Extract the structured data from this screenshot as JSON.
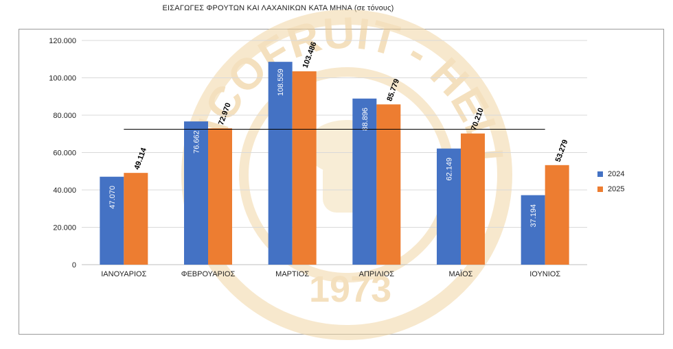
{
  "chart_data": {
    "type": "bar",
    "title": "ΕΙΣΑΓΩΓΕΣ ΦΡΟΥΤΩΝ ΚΑΙ ΛΑΧΑΝΙΚΩΝ ΚΑΤΑ ΜΗΝΑ (σε τόνους)",
    "categories": [
      "ΙΑΝΟΥΑΡΙΟΣ",
      "ΦΕΒΡΟΥΑΡΙΟΣ",
      "ΜΑΡΤΙΟΣ",
      "ΑΠΡΙΛΙΟΣ",
      "ΜΑΪΟΣ",
      "ΙΟΥΝΙΟΣ"
    ],
    "series": [
      {
        "name": "2024",
        "color": "#4472C4",
        "values": [
          47070,
          76662,
          108559,
          88896,
          62149,
          37194
        ],
        "labels": [
          "47.070",
          "76.662",
          "108.559",
          "88.896",
          "62.149",
          "37.194"
        ]
      },
      {
        "name": "2025",
        "color": "#ED7D31",
        "values": [
          49114,
          72970,
          103486,
          85779,
          70210,
          53279
        ],
        "labels": [
          "49.114",
          "72.970",
          "103.486",
          "85.779",
          "70.210",
          "53.279"
        ]
      }
    ],
    "reference_line_value": 72500,
    "ylim": [
      0,
      120000
    ],
    "yticks": [
      0,
      20000,
      40000,
      60000,
      80000,
      100000,
      120000
    ],
    "ytick_labels": [
      "0",
      "20.000",
      "40.000",
      "60.000",
      "80.000",
      "100.000",
      "120.000"
    ],
    "grid": true,
    "legend": "right",
    "xlabel": "",
    "ylabel": ""
  },
  "watermark": {
    "text": "INCOFRUIT - HELLAS",
    "year": "1973"
  }
}
